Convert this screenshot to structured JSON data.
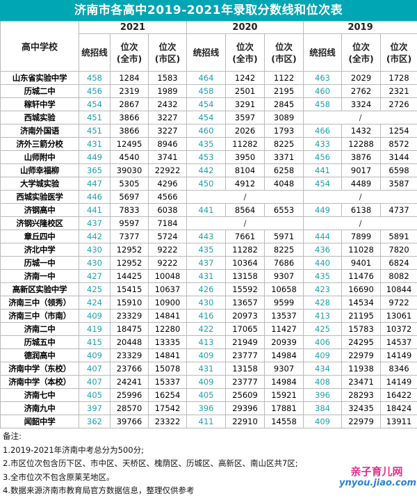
{
  "title": "济南市各高中2019-2021年录取分数线和位次表",
  "header": {
    "school_label": "高中学校",
    "years": [
      "2021",
      "2020",
      "2019"
    ],
    "score_label": "统招线",
    "rank_city_label": "位次\n(全市)",
    "rank_district_label": "位次\n(市区)"
  },
  "rows": [
    {
      "school": "山东省实验中学",
      "y2021": [
        "458",
        "1284",
        "1583"
      ],
      "y2020": [
        "464",
        "1242",
        "1122"
      ],
      "y2019": [
        "463",
        "2029",
        "1728"
      ]
    },
    {
      "school": "历城二中",
      "y2021": [
        "456",
        "2319",
        "1989"
      ],
      "y2020": [
        "458",
        "2501",
        "2195"
      ],
      "y2019": [
        "460",
        "2762",
        "2321"
      ]
    },
    {
      "school": "稼轩中学",
      "y2021": [
        "454",
        "2867",
        "2432"
      ],
      "y2020": [
        "454",
        "3291",
        "2845"
      ],
      "y2019": [
        "458",
        "3324",
        "2726"
      ]
    },
    {
      "school": "西城实验",
      "y2021": [
        "451",
        "3866",
        "3227"
      ],
      "y2020": [
        "454",
        "3597",
        "3089"
      ],
      "y2019": null
    },
    {
      "school": "济南外国语",
      "y2021": [
        "451",
        "3866",
        "3227"
      ],
      "y2020": [
        "460",
        "2026",
        "1793"
      ],
      "y2019": [
        "466",
        "1432",
        "1254"
      ]
    },
    {
      "school": "济外三箭分校",
      "y2021": [
        "431",
        "12495",
        "8946"
      ],
      "y2020": [
        "435",
        "11282",
        "8225"
      ],
      "y2019": [
        "433",
        "12288",
        "8572"
      ]
    },
    {
      "school": "山师附中",
      "y2021": [
        "449",
        "4540",
        "3741"
      ],
      "y2020": [
        "453",
        "3950",
        "3371"
      ],
      "y2019": [
        "456",
        "3876",
        "3144"
      ]
    },
    {
      "school": "山师幸福柳",
      "y2021": [
        "365",
        "39030",
        "22922"
      ],
      "y2020": [
        "442",
        "8104",
        "6258"
      ],
      "y2019": [
        "441",
        "9017",
        "6598"
      ]
    },
    {
      "school": "大学城实验",
      "y2021": [
        "447",
        "5305",
        "4296"
      ],
      "y2020": [
        "450",
        "4912",
        "4048"
      ],
      "y2019": [
        "454",
        "4489",
        "3587"
      ]
    },
    {
      "school": "西城实验医学",
      "y2021": [
        "446",
        "5697",
        "4566"
      ],
      "y2020": null,
      "y2019": null
    },
    {
      "school": "济钢高中",
      "y2021": [
        "441",
        "7833",
        "6038"
      ],
      "y2020": [
        "441",
        "8564",
        "6553"
      ],
      "y2019": [
        "449",
        "6138",
        "4737"
      ]
    },
    {
      "school": "济钢兴隆校区",
      "y2021": [
        "437",
        "9597",
        "7184"
      ],
      "y2020": null,
      "y2019": null
    },
    {
      "school": "章丘四中",
      "y2021": [
        "442",
        "7377",
        "5724"
      ],
      "y2020": [
        "443",
        "7661",
        "5971"
      ],
      "y2019": [
        "444",
        "7899",
        "5891"
      ]
    },
    {
      "school": "济北中学",
      "y2021": [
        "430",
        "12952",
        "9222"
      ],
      "y2020": [
        "435",
        "11282",
        "8225"
      ],
      "y2019": [
        "436",
        "11028",
        "7820"
      ]
    },
    {
      "school": "历城一中",
      "y2021": [
        "430",
        "12952",
        "9222"
      ],
      "y2020": [
        "437",
        "10364",
        "7686"
      ],
      "y2019": [
        "440",
        "9401",
        "6824"
      ]
    },
    {
      "school": "济南一中",
      "y2021": [
        "427",
        "14425",
        "10048"
      ],
      "y2020": [
        "431",
        "13158",
        "9307"
      ],
      "y2019": [
        "435",
        "11476",
        "8082"
      ]
    },
    {
      "school": "高新区实验中学",
      "y2021": [
        "425",
        "15415",
        "10637"
      ],
      "y2020": [
        "426",
        "15592",
        "10658"
      ],
      "y2019": [
        "423",
        "16690",
        "10844"
      ]
    },
    {
      "school": "济南三中（领秀）",
      "y2021": [
        "424",
        "15910",
        "10900"
      ],
      "y2020": [
        "430",
        "13657",
        "9599"
      ],
      "y2019": [
        "428",
        "14534",
        "9722"
      ]
    },
    {
      "school": "济南三中（市南）",
      "y2021": [
        "409",
        "23329",
        "14841"
      ],
      "y2020": [
        "416",
        "20973",
        "13537"
      ],
      "y2019": [
        "413",
        "21195",
        "13061"
      ]
    },
    {
      "school": "济南二中",
      "y2021": [
        "419",
        "18475",
        "12280"
      ],
      "y2020": [
        "422",
        "17065",
        "11427"
      ],
      "y2019": [
        "425",
        "15783",
        "10372"
      ]
    },
    {
      "school": "历城五中",
      "y2021": [
        "415",
        "20448",
        "13335"
      ],
      "y2020": [
        "413",
        "21949",
        "20939"
      ],
      "y2019": [
        "406",
        "24295",
        "14537"
      ]
    },
    {
      "school": "德润高中",
      "y2021": [
        "409",
        "23329",
        "14841"
      ],
      "y2020": [
        "409",
        "23777",
        "14984"
      ],
      "y2019": [
        "409",
        "22979",
        "14149"
      ]
    },
    {
      "school": "济南中学（东校）",
      "y2021": [
        "407",
        "23766",
        "15078"
      ],
      "y2020": [
        "431",
        "13158",
        "9307"
      ],
      "y2019": [
        "434",
        "11938",
        "8346"
      ]
    },
    {
      "school": "济南中学（本校）",
      "y2021": [
        "407",
        "24241",
        "15337"
      ],
      "y2020": [
        "409",
        "23777",
        "14984"
      ],
      "y2019": [
        "408",
        "23471",
        "14149"
      ]
    },
    {
      "school": "济南七中",
      "y2021": [
        "405",
        "25996",
        "16254"
      ],
      "y2020": [
        "405",
        "25609",
        "15921"
      ],
      "y2019": [
        "396",
        "28293",
        "16422"
      ]
    },
    {
      "school": "济南九中",
      "y2021": [
        "397",
        "28570",
        "17542"
      ],
      "y2020": [
        "396",
        "29396",
        "17881"
      ],
      "y2019": [
        "384",
        "32435",
        "18424"
      ]
    },
    {
      "school": "闻韶中学",
      "y2021": [
        "362",
        "39766",
        "23322"
      ],
      "y2020": [
        "411",
        "22910",
        "14558"
      ],
      "y2019": [
        "409",
        "22979",
        "13911"
      ]
    }
  ],
  "missing_mark": "/",
  "notes": [
    "备注:",
    "1.2019-2021年济南中考总分为500分;",
    "2.市区位次包含历下区、市中区、天桥区、槐荫区、历城区、高新区、南山区共7区;",
    "3.全市位次不包含原莱芜地区。",
    "4.数据来源济南市教育局官方数据信息，整理仅供参考"
  ],
  "watermark": {
    "line1": "亲子育儿网",
    "line2": "ynyou.jiao.com"
  },
  "colors": {
    "title_bg": "#00a6b3",
    "score": "#1aa3ad",
    "watermark_pink": "#e6308a",
    "watermark_blue": "#2a7fd4"
  }
}
